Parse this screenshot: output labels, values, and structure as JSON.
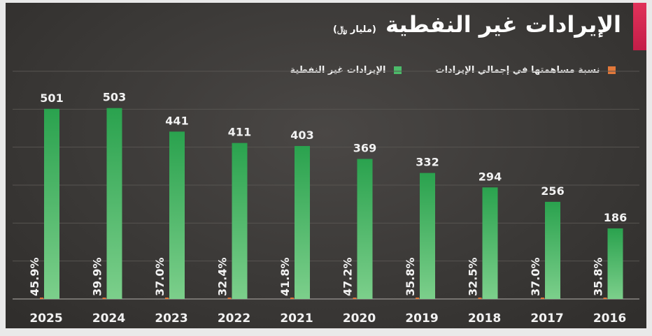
{
  "colors": {
    "revenue_bar": "#4cbb6a",
    "share_marker": "#e2783a",
    "accent": "#d4274f"
  },
  "chart_data": {
    "type": "bar",
    "title": "الإيرادات غير النفطية",
    "unit_label": "(مليار ﷼)",
    "xlabel": "",
    "ylabel": "",
    "categories": [
      "2025",
      "2024",
      "2023",
      "2022",
      "2021",
      "2020",
      "2019",
      "2018",
      "2017",
      "2016"
    ],
    "series": [
      {
        "name": "الإيرادات غير النفطية",
        "values": [
          501,
          503,
          441,
          411,
          403,
          369,
          332,
          294,
          256,
          186
        ]
      },
      {
        "name": "نسبة مساهمتها في إجمالي الإيرادات",
        "values": [
          "45.9%",
          "39.9%",
          "37.0%",
          "32.4%",
          "41.8%",
          "47.2%",
          "35.8%",
          "32.5%",
          "37.0%",
          "35.8%"
        ]
      }
    ],
    "ylim": [
      0,
      600
    ],
    "grid": true,
    "legend_position": "top-right"
  }
}
